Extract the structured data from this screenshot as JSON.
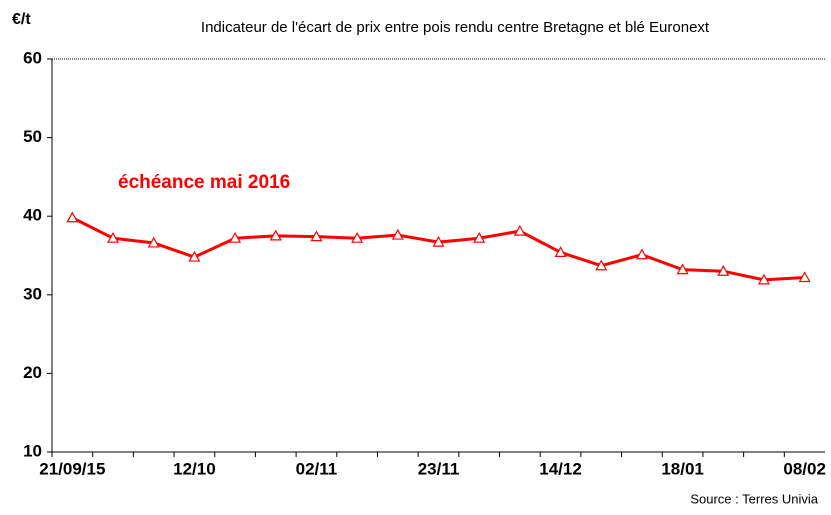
{
  "chart_data": {
    "type": "line",
    "title": "Indicateur de l'écart de prix entre pois rendu centre Bretagne et blé Euronext",
    "y_label": "€/t",
    "annotation": "échéance mai 2016",
    "source": "Source : Terres Univia",
    "categories": [
      "21/09/15",
      null,
      null,
      "12/10",
      null,
      null,
      "02/11",
      null,
      null,
      "23/11",
      null,
      null,
      "14/12",
      null,
      null,
      "18/01",
      null,
      null,
      "08/02"
    ],
    "series": [
      {
        "name": "échéance mai 2016",
        "color": "#ff0000",
        "values": [
          39.8,
          37.2,
          36.6,
          34.8,
          37.2,
          37.5,
          37.4,
          37.2,
          37.6,
          36.7,
          37.2,
          38.1,
          35.4,
          33.7,
          35.1,
          33.2,
          33.0,
          31.9,
          32.2
        ]
      }
    ],
    "ylim": [
      10,
      60
    ],
    "yticks": [
      10,
      20,
      30,
      40,
      50,
      60
    ],
    "grid": false
  }
}
